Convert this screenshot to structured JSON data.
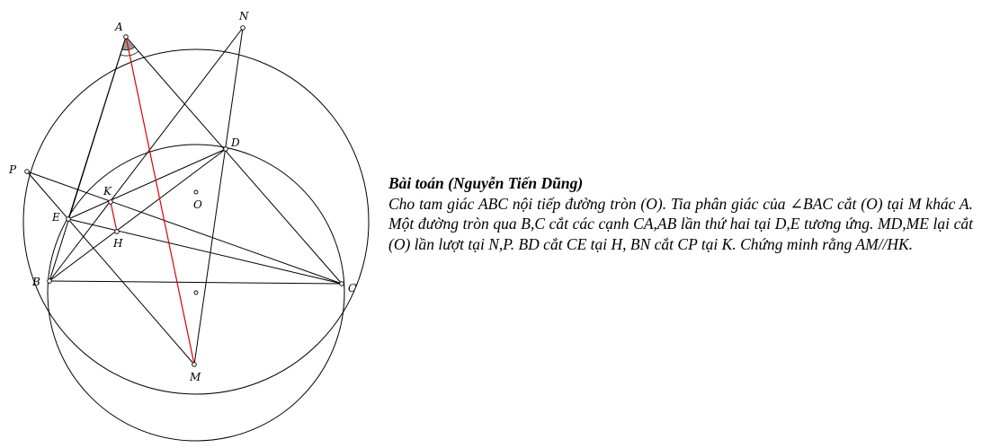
{
  "problem": {
    "title": "Bài toán (Nguyễn Tiến Dũng)",
    "text": "Cho tam giác ABC nội tiếp đường tròn (O). Tia phân giác của ∠BAC cắt (O) tại M khác A. Một đường tròn qua B,C cắt các cạnh CA,AB lần thứ hai tại D,E tương ứng. MD,ME lại cắt (O) lần lượt tại N,P. BD cắt CE tại H, BN cắt CP tại K. Chứng minh rằng AM//HK."
  },
  "figure": {
    "labels": {
      "A": "A",
      "N": "N",
      "D": "D",
      "P": "P",
      "K": "K",
      "E": "E",
      "O": "O",
      "H": "H",
      "B": "B",
      "C": "C",
      "M": "M"
    },
    "colors": {
      "line": "#000000",
      "bisector": "#e00000",
      "angle_mark": "#9a9a9a"
    }
  }
}
